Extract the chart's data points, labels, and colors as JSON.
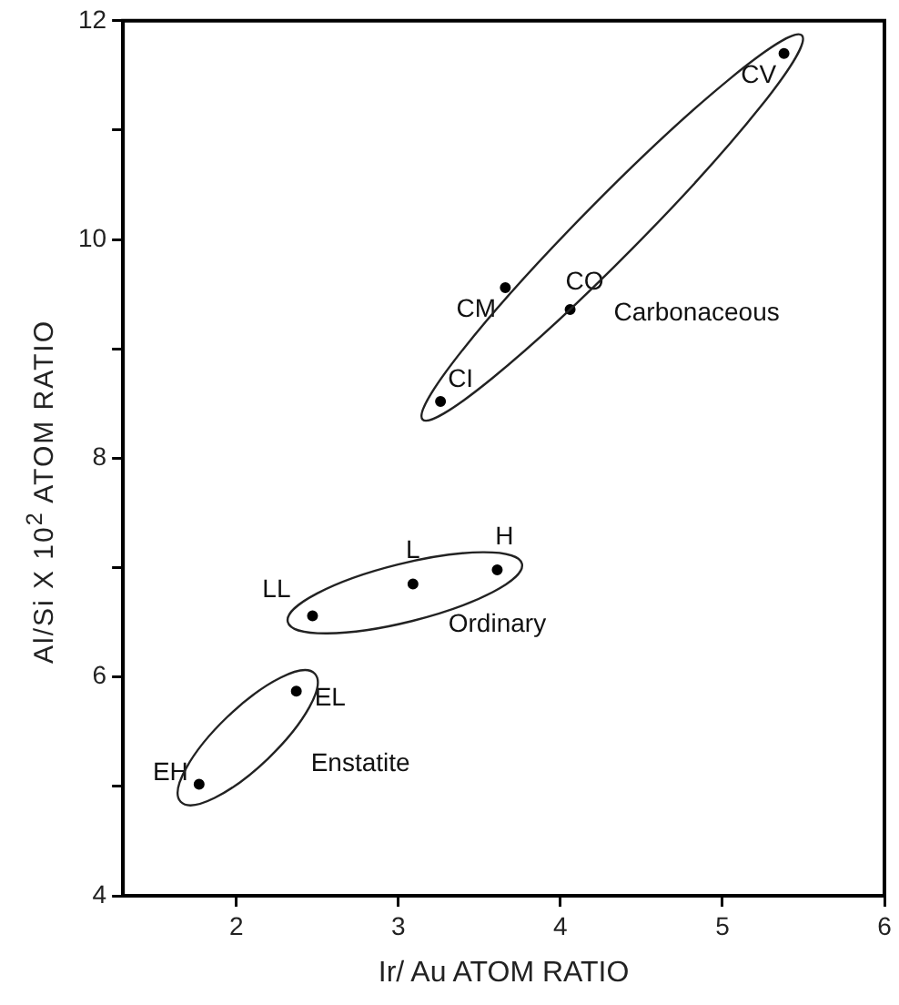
{
  "chart_data": {
    "type": "scatter",
    "xlabel": "Ir/ Au ATOM RATIO",
    "ylabel": "Al/Si X 10$^{2}$ ATOM RATIO",
    "series": [
      {
        "name": "Carbonaceous",
        "color": "#000000",
        "x": [
          3.26,
          3.66,
          4.06,
          5.38
        ],
        "values": [
          8.52,
          9.56,
          9.36,
          11.7
        ]
      },
      {
        "name": "Ordinary",
        "color": "#000000",
        "x": [
          2.47,
          3.09,
          3.61
        ],
        "values": [
          6.56,
          6.85,
          6.98
        ]
      },
      {
        "name": "Enstatite",
        "color": "#000000",
        "x": [
          1.77,
          2.37
        ],
        "values": [
          5.02,
          5.87
        ]
      }
    ],
    "annotations": [
      {
        "text": "CI",
        "x": 3.26,
        "y": 8.52
      },
      {
        "text": "CM",
        "x": 3.66,
        "y": 9.56
      },
      {
        "text": "CO",
        "x": 4.06,
        "y": 9.36
      },
      {
        "text": "CV",
        "x": 5.38,
        "y": 11.7
      },
      {
        "text": "LL",
        "x": 2.47,
        "y": 6.56
      },
      {
        "text": "L",
        "x": 3.09,
        "y": 6.85
      },
      {
        "text": "H",
        "x": 3.61,
        "y": 6.98
      },
      {
        "text": "EH",
        "x": 1.77,
        "y": 5.02
      },
      {
        "text": "EL",
        "x": 2.37,
        "y": 5.87
      }
    ],
    "xlim": [
      1.3,
      6
    ],
    "xticks": [
      2,
      3,
      4,
      5,
      6
    ],
    "ylim": [
      4,
      12
    ],
    "yticks": [
      4,
      {
        "value": 5,
        "label": null
      },
      6,
      {
        "value": 7,
        "label": null
      },
      8,
      {
        "value": 9,
        "label": null
      },
      10,
      {
        "value": 11,
        "label": null
      },
      12
    ],
    "marker": "circle",
    "grid": false,
    "legend": false
  }
}
